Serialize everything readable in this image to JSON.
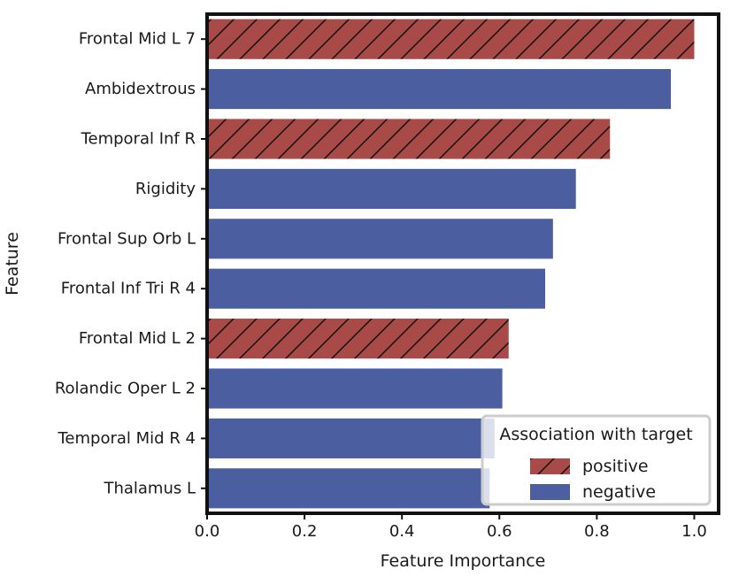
{
  "colors": {
    "positive": "#a84a47",
    "negative": "#4a5ea0",
    "hatch": "#111111",
    "frame": "#111111"
  },
  "chart_data": {
    "type": "bar",
    "orientation": "horizontal",
    "xlabel": "Feature Importance",
    "ylabel": "Feature",
    "xlim": [
      0,
      1.05
    ],
    "xticks": [
      "0.0",
      "0.2",
      "0.4",
      "0.6",
      "0.8",
      "1.0"
    ],
    "xtick_values": [
      0,
      0.2,
      0.4,
      0.6,
      0.8,
      1.0
    ],
    "grid": false,
    "categories": [
      "Frontal Mid L 7",
      "Ambidextrous",
      "Temporal Inf R",
      "Rigidity",
      "Frontal Sup Orb L",
      "Frontal Inf Tri R 4",
      "Frontal Mid L 2",
      "Rolandic Oper L 2",
      "Temporal Mid R 4",
      "Thalamus L"
    ],
    "values": [
      1.0,
      0.952,
      0.827,
      0.757,
      0.71,
      0.694,
      0.619,
      0.606,
      0.59,
      0.58
    ],
    "association": [
      "positive",
      "negative",
      "positive",
      "negative",
      "negative",
      "negative",
      "positive",
      "negative",
      "negative",
      "negative"
    ],
    "legend": {
      "title": "Association with target",
      "position": "lower-right",
      "entries": [
        {
          "key": "positive",
          "label": "positive",
          "hatch": true
        },
        {
          "key": "negative",
          "label": "negative",
          "hatch": false
        }
      ]
    }
  }
}
